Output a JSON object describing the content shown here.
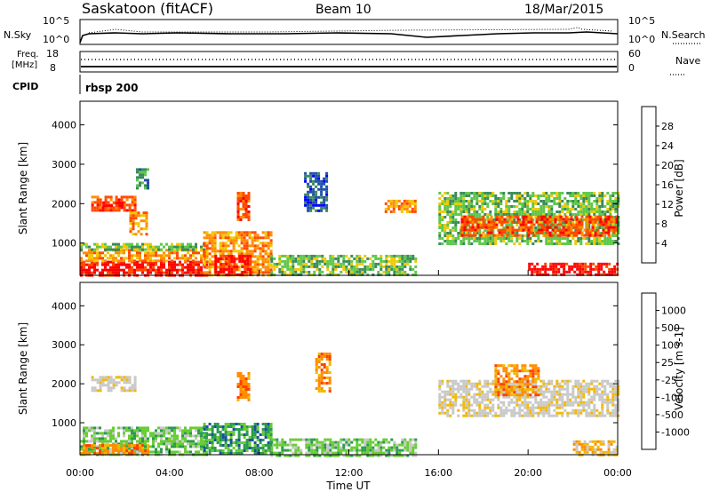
{
  "header": {
    "station": "Saskatoon (fitACF)",
    "beam": "Beam 10",
    "date": "18/Mar/2015"
  },
  "noise_panel": {
    "left_label": "N.Sky",
    "left_ticks": [
      "10^5",
      "10^0"
    ],
    "right_ticks": [
      "10^5",
      "10^0"
    ],
    "right_label": "N.Search"
  },
  "freq_panel": {
    "left_label_1": "Freq.",
    "left_label_2": "[MHz]",
    "left_ticks": [
      "18",
      "8"
    ],
    "right_ticks": [
      "60",
      "0"
    ],
    "right_label": "Nave"
  },
  "cpid": {
    "label": "CPID",
    "value": "rbsp 200"
  },
  "colors": {
    "power": [
      "#0000ff",
      "#1f4fa8",
      "#3a8a5a",
      "#5cc84a",
      "#f0c800",
      "#ff8c00",
      "#ff4a00",
      "#ff0000"
    ],
    "velocity": [
      "#ff0000",
      "#ff4000",
      "#ff8c00",
      "#f2b800",
      "#c8c8c8",
      "#c8c8c8",
      "#66cc33",
      "#2a9a50",
      "#1a50a0",
      "#0000ff"
    ]
  },
  "chart_data": [
    {
      "type": "heatmap",
      "id": "power",
      "x_label": "",
      "y_label": "Slant Range [km]",
      "xlim": [
        0,
        24
      ],
      "ylim": [
        180,
        4600
      ],
      "y_ticks": [
        1000,
        2000,
        3000,
        4000
      ],
      "colorbar_label": "Power [dB]",
      "colorbar_ticks": [
        "28",
        "24",
        "20",
        "16",
        "12",
        "8",
        "4"
      ],
      "colorbar_range": [
        0,
        32
      ],
      "grid": false,
      "echo_regions": [
        {
          "t0": 0.0,
          "t1": 5.6,
          "r0": 180,
          "r1": 550,
          "level": 7
        },
        {
          "t0": 0.0,
          "t1": 5.6,
          "r0": 550,
          "r1": 850,
          "level": 5
        },
        {
          "t0": 0.0,
          "t1": 5.6,
          "r0": 850,
          "r1": 1000,
          "level": 3
        },
        {
          "t0": 0.5,
          "t1": 2.5,
          "r0": 1800,
          "r1": 2200,
          "level": 6
        },
        {
          "t0": 1.0,
          "t1": 1.9,
          "r0": 1950,
          "r1": 2050,
          "level": 7
        },
        {
          "t0": 2.2,
          "t1": 3.0,
          "r0": 1200,
          "r1": 1800,
          "level": 5
        },
        {
          "t0": 2.5,
          "t1": 3.0,
          "r0": 2400,
          "r1": 2900,
          "level": 2
        },
        {
          "t0": 5.5,
          "t1": 8.5,
          "r0": 180,
          "r1": 1300,
          "level": 5
        },
        {
          "t0": 6.0,
          "t1": 7.6,
          "r0": 180,
          "r1": 700,
          "level": 7
        },
        {
          "t0": 7.0,
          "t1": 7.5,
          "r0": 1600,
          "r1": 2300,
          "level": 6
        },
        {
          "t0": 8.5,
          "t1": 15.0,
          "r0": 180,
          "r1": 700,
          "level": 3
        },
        {
          "t0": 10.0,
          "t1": 11.0,
          "r0": 1800,
          "r1": 2800,
          "level": 1
        },
        {
          "t0": 13.6,
          "t1": 15.0,
          "r0": 1800,
          "r1": 2100,
          "level": 5
        },
        {
          "t0": 16.0,
          "t1": 24.0,
          "r0": 1000,
          "r1": 2300,
          "level": 3
        },
        {
          "t0": 17.0,
          "t1": 24.0,
          "r0": 1200,
          "r1": 1700,
          "level": 6
        },
        {
          "t0": 20.0,
          "t1": 24.0,
          "r0": 180,
          "r1": 500,
          "level": 7
        }
      ]
    },
    {
      "type": "heatmap",
      "id": "velocity",
      "x_label": "Time UT",
      "y_label": "Slant Range [km]",
      "xlim": [
        0,
        24
      ],
      "ylim": [
        180,
        4600
      ],
      "x_ticks": [
        "00:00",
        "04:00",
        "08:00",
        "12:00",
        "16:00",
        "20:00",
        "00:00"
      ],
      "y_ticks": [
        1000,
        2000,
        3000,
        4000
      ],
      "colorbar_label": "Velocity [m s-1]",
      "colorbar_ticks": [
        "1000",
        "500",
        "100",
        "25",
        "-25",
        "-100",
        "-500",
        "-1000"
      ],
      "grid": false,
      "echo_regions": [
        {
          "t0": 0.0,
          "t1": 5.6,
          "r0": 180,
          "r1": 900,
          "level": 6
        },
        {
          "t0": 0.0,
          "t1": 3.0,
          "r0": 180,
          "r1": 450,
          "level": 2
        },
        {
          "t0": 0.5,
          "t1": 2.5,
          "r0": 1800,
          "r1": 2200,
          "level": 4
        },
        {
          "t0": 5.5,
          "t1": 8.5,
          "r0": 180,
          "r1": 1000,
          "level": 7
        },
        {
          "t0": 7.0,
          "t1": 7.5,
          "r0": 1600,
          "r1": 2300,
          "level": 2
        },
        {
          "t0": 8.5,
          "t1": 15.0,
          "r0": 180,
          "r1": 600,
          "level": 6
        },
        {
          "t0": 10.5,
          "t1": 11.2,
          "r0": 1800,
          "r1": 2800,
          "level": 2
        },
        {
          "t0": 16.0,
          "t1": 24.0,
          "r0": 1200,
          "r1": 2100,
          "level": 4
        },
        {
          "t0": 18.5,
          "t1": 20.5,
          "r0": 1700,
          "r1": 2500,
          "level": 2
        },
        {
          "t0": 22.0,
          "t1": 24.0,
          "r0": 180,
          "r1": 550,
          "level": 3
        }
      ]
    }
  ]
}
